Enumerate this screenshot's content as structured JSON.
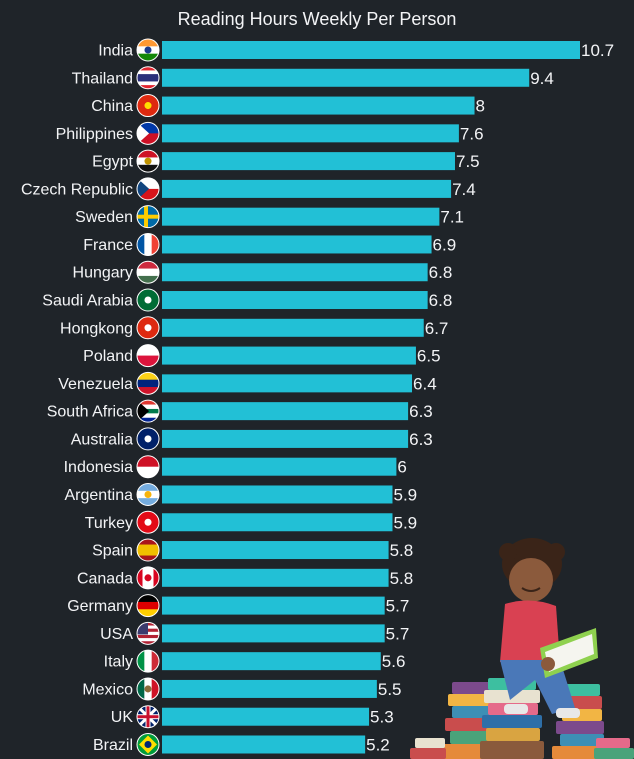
{
  "chart_data": {
    "type": "bar",
    "orientation": "horizontal",
    "title": "Reading Hours Weekly Per Person",
    "xlabel": "",
    "ylabel": "",
    "categories": [
      "India",
      "Thailand",
      "China",
      "Philippines",
      "Egypt",
      "Czech Republic",
      "Sweden",
      "France",
      "Hungary",
      "Saudi Arabia",
      "Hongkong",
      "Poland",
      "Venezuela",
      "South Africa",
      "Australia",
      "Indonesia",
      "Argentina",
      "Turkey",
      "Spain",
      "Canada",
      "Germany",
      "USA",
      "Italy",
      "Mexico",
      "UK",
      "Brazil"
    ],
    "values": [
      10.7,
      9.4,
      8,
      7.6,
      7.5,
      7.4,
      7.1,
      6.9,
      6.8,
      6.8,
      6.7,
      6.5,
      6.4,
      6.3,
      6.3,
      6,
      5.9,
      5.9,
      5.8,
      5.8,
      5.7,
      5.7,
      5.6,
      5.5,
      5.3,
      5.2
    ],
    "value_labels": [
      "10.7",
      "9.4",
      "8",
      "7.6",
      "7.5",
      "7.4",
      "7.1",
      "6.9",
      "6.8",
      "6.8",
      "6.7",
      "6.5",
      "6.4",
      "6.3",
      "6.3",
      "6",
      "5.9",
      "5.9",
      "5.8",
      "5.8",
      "5.7",
      "5.7",
      "5.6",
      "5.5",
      "5.3",
      "5.2"
    ],
    "xlim": [
      0,
      10.7
    ],
    "grid": false,
    "bar_color": "#22c0d6"
  },
  "decoration": {
    "illustration": "child-reading-on-book-stack",
    "flag_icons": [
      "india-flag-icon",
      "thailand-flag-icon",
      "china-flag-icon",
      "philippines-flag-icon",
      "egypt-flag-icon",
      "czech-flag-icon",
      "sweden-flag-icon",
      "france-flag-icon",
      "hungary-flag-icon",
      "saudi-arabia-flag-icon",
      "hongkong-flag-icon",
      "poland-flag-icon",
      "venezuela-flag-icon",
      "south-africa-flag-icon",
      "australia-flag-icon",
      "indonesia-flag-icon",
      "argentina-flag-icon",
      "turkey-flag-icon",
      "spain-flag-icon",
      "canada-flag-icon",
      "germany-flag-icon",
      "usa-flag-icon",
      "italy-flag-icon",
      "mexico-flag-icon",
      "uk-flag-icon",
      "brazil-flag-icon"
    ]
  }
}
